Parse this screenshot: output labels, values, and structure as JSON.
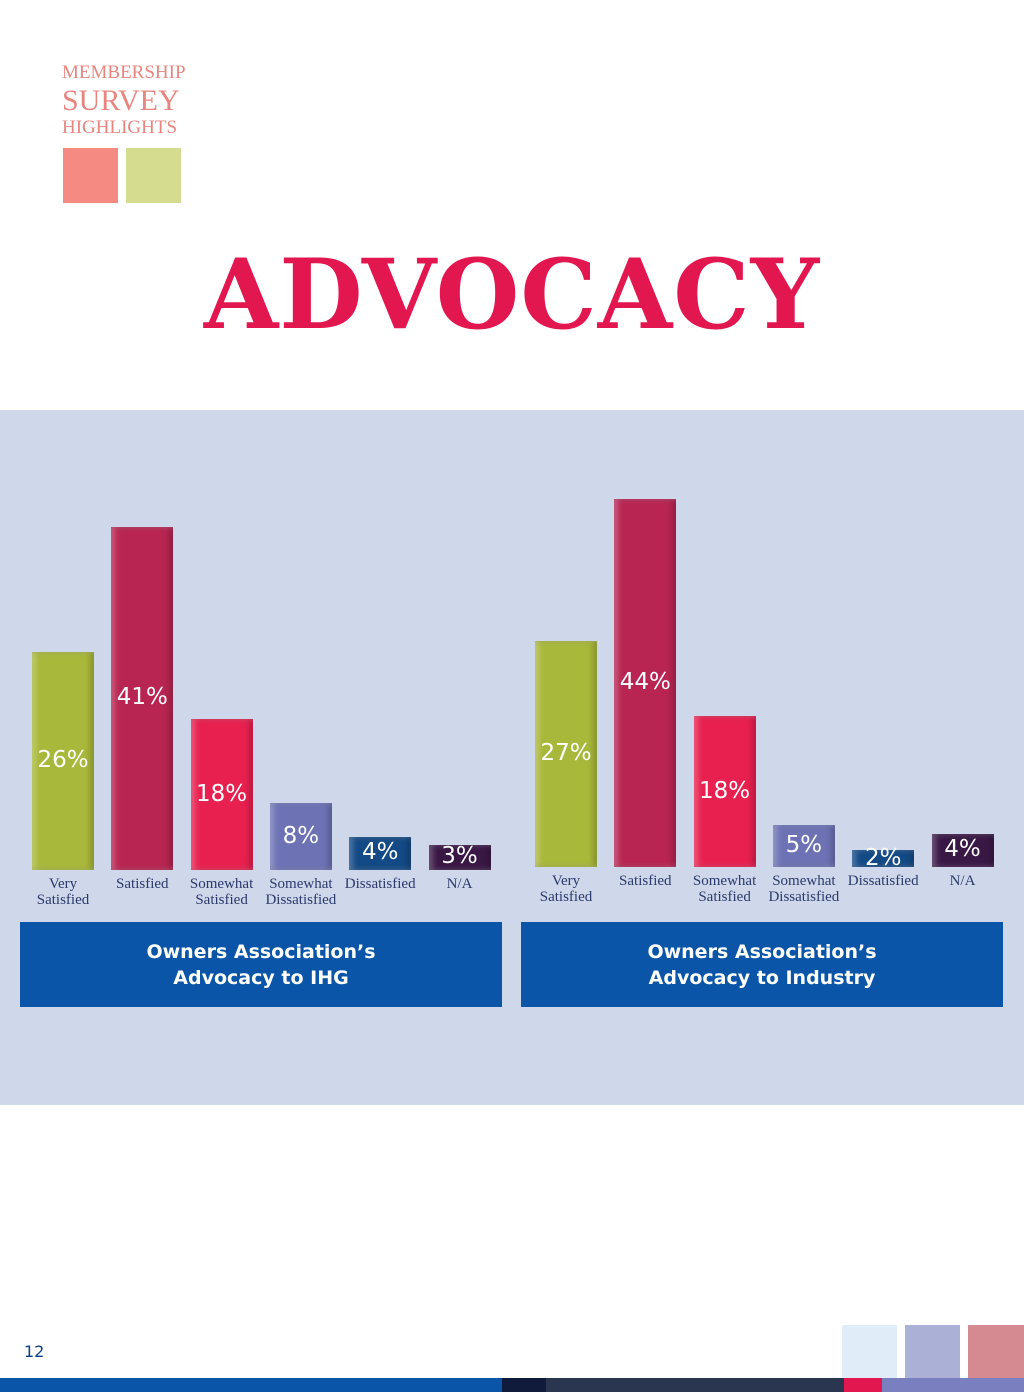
{
  "header": {
    "line1": "MEMBERSHIP",
    "line2": "SURVEY",
    "line3": "HIGHLIGHTS"
  },
  "title": "ADVOCACY",
  "page_number": "12",
  "chart_data": [
    {
      "type": "bar",
      "title": "Owners Association’s Advocacy to IHG",
      "categories": [
        "Very Satisfied",
        "Satisfied",
        "Somewhat Satisfied",
        "Somewhat Dissatisfied",
        "Dissatisfied",
        "N/A"
      ],
      "values": [
        26,
        41,
        18,
        8,
        4,
        3
      ],
      "value_labels": [
        "26%",
        "41%",
        "18%",
        "8%",
        "4%",
        "3%"
      ],
      "colors": [
        "#a8b83a",
        "#b82552",
        "#e8204f",
        "#6d72b5",
        "#134a86",
        "#3a1846"
      ]
    },
    {
      "type": "bar",
      "title": "Owners Association’s Advocacy to Industry",
      "categories": [
        "Very Satisfied",
        "Satisfied",
        "Somewhat Satisfied",
        "Somewhat Dissatisfied",
        "Dissatisfied",
        "N/A"
      ],
      "values": [
        27,
        44,
        18,
        5,
        2,
        4
      ],
      "value_labels": [
        "27%",
        "44%",
        "18%",
        "5%",
        "2%",
        "4%"
      ],
      "colors": [
        "#a8b83a",
        "#b82552",
        "#e8204f",
        "#6d72b5",
        "#134a86",
        "#3a1846"
      ]
    }
  ]
}
